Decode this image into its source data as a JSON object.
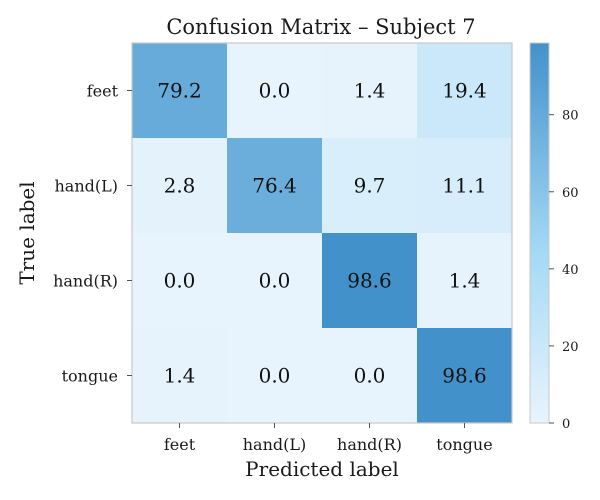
{
  "chart_data": {
    "type": "heatmap",
    "title": "Confusion Matrix – Subject 7",
    "xlabel": "Predicted label",
    "ylabel": "True label",
    "x_categories": [
      "feet",
      "hand(L)",
      "hand(R)",
      "tongue"
    ],
    "y_categories": [
      "feet",
      "hand(L)",
      "hand(R)",
      "tongue"
    ],
    "values": [
      [
        79.2,
        0.0,
        1.4,
        19.4
      ],
      [
        2.8,
        76.4,
        9.7,
        11.1
      ],
      [
        0.0,
        0.0,
        98.6,
        1.4
      ],
      [
        1.4,
        0.0,
        0.0,
        98.6
      ]
    ],
    "value_labels": [
      [
        "79.2",
        "0.0",
        "1.4",
        "19.4"
      ],
      [
        "2.8",
        "76.4",
        "9.7",
        "11.1"
      ],
      [
        "0.0",
        "0.0",
        "98.6",
        "1.4"
      ],
      [
        "1.4",
        "0.0",
        "0.0",
        "98.6"
      ]
    ],
    "colorbar": {
      "range": [
        0,
        98.6
      ],
      "ticks": [
        0,
        20,
        40,
        60,
        80
      ],
      "tick_labels": [
        "0",
        "20",
        "40",
        "60",
        "80"
      ],
      "color_low": "#e8f4fd",
      "color_mid": "#a4d9f5",
      "color_high": "#4391cb"
    }
  }
}
